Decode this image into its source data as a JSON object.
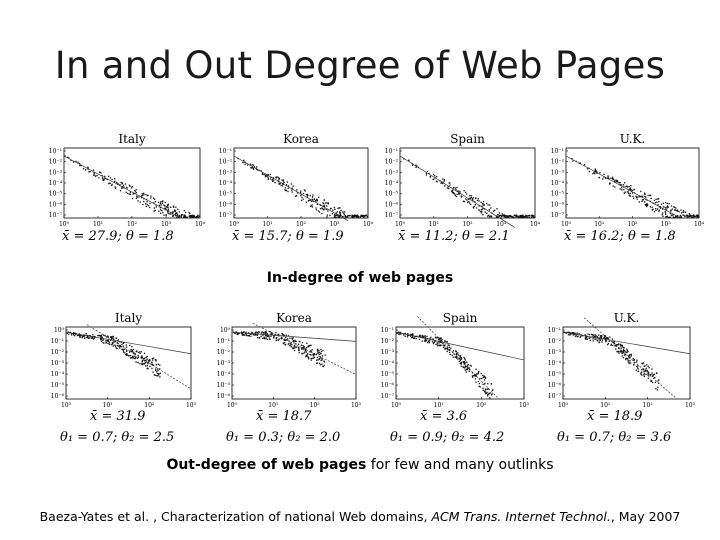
{
  "slide": {
    "title": "In and Out Degree of Web Pages",
    "in_caption": "In-degree of web pages",
    "out_caption_bold": "Out-degree of web pages",
    "out_caption_rest": " for few and many outlinks",
    "citation_authors": "Baeza-Yates et al. , Characterization of national Web domains, ",
    "citation_journal": "ACM Trans. Internet Technol.",
    "citation_date": ", May 2007"
  },
  "chart_data": [
    {
      "type": "scatter",
      "title": "Italy",
      "log_x": true,
      "log_y": true,
      "xlim": [
        1,
        10000
      ],
      "ylim": [
        1e-07,
        1
      ],
      "x_ticks": [
        "10⁰",
        "10¹",
        "10²",
        "10³",
        "10⁴"
      ],
      "y_ticks": [
        "10⁻¹",
        "10⁻²",
        "10⁻³",
        "10⁻⁴",
        "10⁻⁵",
        "10⁻⁶",
        "10⁻⁷"
      ],
      "stat_lines": [
        "x̄ = 27.9; θ = 1.8"
      ],
      "exponents": [
        1.8
      ]
    },
    {
      "type": "scatter",
      "title": "Korea",
      "log_x": true,
      "log_y": true,
      "xlim": [
        1,
        10000
      ],
      "ylim": [
        1e-07,
        1
      ],
      "x_ticks": [
        "10⁰",
        "10¹",
        "10²",
        "10³",
        "10⁴"
      ],
      "y_ticks": [
        "10⁻¹",
        "10⁻²",
        "10⁻³",
        "10⁻⁴",
        "10⁻⁵",
        "10⁻⁶",
        "10⁻⁷"
      ],
      "stat_lines": [
        "x̄ = 15.7; θ = 1.9"
      ],
      "exponents": [
        1.9
      ]
    },
    {
      "type": "scatter",
      "title": "Spain",
      "log_x": true,
      "log_y": true,
      "xlim": [
        1,
        10000
      ],
      "ylim": [
        1e-07,
        1
      ],
      "x_ticks": [
        "10⁰",
        "10¹",
        "10²",
        "10³",
        "10⁴"
      ],
      "y_ticks": [
        "10⁻¹",
        "10⁻²",
        "10⁻³",
        "10⁻⁴",
        "10⁻⁵",
        "10⁻⁶",
        "10⁻⁷"
      ],
      "stat_lines": [
        "x̄ = 11.2; θ = 2.1"
      ],
      "exponents": [
        2.1
      ]
    },
    {
      "type": "scatter",
      "title": "U.K.",
      "log_x": true,
      "log_y": true,
      "xlim": [
        1,
        10000
      ],
      "ylim": [
        1e-07,
        1
      ],
      "x_ticks": [
        "10⁰",
        "10¹",
        "10²",
        "10³",
        "10⁴"
      ],
      "y_ticks": [
        "10⁻¹",
        "10⁻²",
        "10⁻³",
        "10⁻⁴",
        "10⁻⁵",
        "10⁻⁶",
        "10⁻⁷"
      ],
      "stat_lines": [
        "x̄ = 16.2; θ = 1.8"
      ],
      "exponents": [
        1.8
      ]
    },
    {
      "type": "scatter",
      "title": "Italy",
      "log_x": true,
      "log_y": true,
      "xlim": [
        1,
        1000
      ],
      "ylim": [
        1e-07,
        1
      ],
      "x_ticks": [
        "10⁰",
        "10¹",
        "10²",
        "10³"
      ],
      "y_ticks": [
        "10⁰",
        "10⁻¹",
        "10⁻²",
        "10⁻³",
        "10⁻⁴",
        "10⁻⁵",
        "10⁻⁶"
      ],
      "stat_lines": [
        "x̄ = 31.9",
        "θ₁ = 0.7; θ₂ = 2.5"
      ],
      "exponents": [
        0.7,
        2.5
      ]
    },
    {
      "type": "scatter",
      "title": "Korea",
      "log_x": true,
      "log_y": true,
      "xlim": [
        1,
        1000
      ],
      "ylim": [
        1e-07,
        1
      ],
      "x_ticks": [
        "10⁰",
        "10¹",
        "10²",
        "10³"
      ],
      "y_ticks": [
        "10⁰",
        "10⁻¹",
        "10⁻²",
        "10⁻³",
        "10⁻⁴",
        "10⁻⁵",
        "10⁻⁶"
      ],
      "stat_lines": [
        "x̄ = 18.7",
        "θ₁ = 0.3; θ₂ = 2.0"
      ],
      "exponents": [
        0.3,
        2.0
      ]
    },
    {
      "type": "scatter",
      "title": "Spain",
      "log_x": true,
      "log_y": true,
      "xlim": [
        1,
        1000
      ],
      "ylim": [
        1e-07,
        1
      ],
      "x_ticks": [
        "10⁰",
        "10¹",
        "10²",
        "10³"
      ],
      "y_ticks": [
        "10⁻¹",
        "10⁻²",
        "10⁻³",
        "10⁻⁴",
        "10⁻⁵",
        "10⁻⁶",
        "10⁻⁷"
      ],
      "stat_lines": [
        "x̄ = 3.6",
        "θ₁ = 0.9; θ₂ = 4.2"
      ],
      "exponents": [
        0.9,
        4.2
      ]
    },
    {
      "type": "scatter",
      "title": "U.K.",
      "log_x": true,
      "log_y": true,
      "xlim": [
        1,
        1000
      ],
      "ylim": [
        1e-07,
        1
      ],
      "x_ticks": [
        "10⁰",
        "10¹",
        "10²",
        "10³"
      ],
      "y_ticks": [
        "10⁻¹",
        "10⁻²",
        "10⁻³",
        "10⁻⁴",
        "10⁻⁵",
        "10⁻⁶",
        "10⁻⁷"
      ],
      "stat_lines": [
        "x̄ = 18.9",
        "θ₁ = 0.7; θ₂ = 3.6"
      ],
      "exponents": [
        0.7,
        3.6
      ]
    }
  ]
}
